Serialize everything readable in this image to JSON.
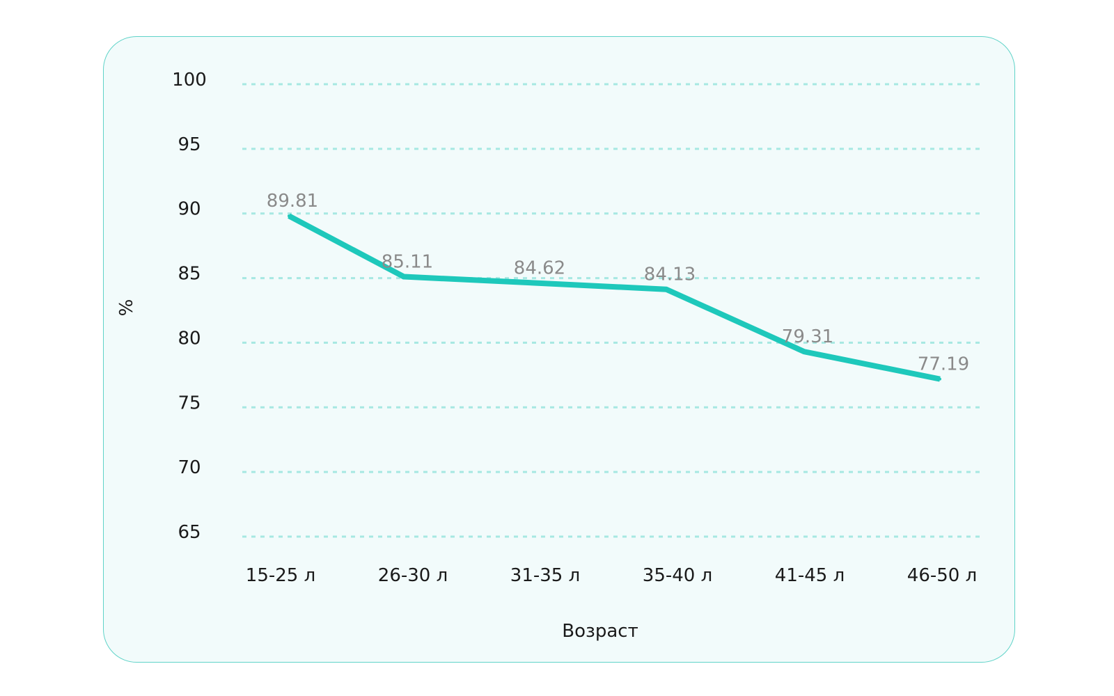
{
  "chart_data": {
    "type": "line",
    "categories": [
      "15-25 л",
      "26-30 л",
      "31-35 л",
      "35-40 л",
      "41-45 л",
      "46-50 л"
    ],
    "series": [
      {
        "values": [
          89.81,
          85.11,
          84.62,
          84.13,
          79.31,
          77.19
        ],
        "color": "#1ec8bb"
      }
    ],
    "data_labels": [
      "89.81",
      "85.11",
      "84.62",
      "84.13",
      "79.31",
      "77.19"
    ],
    "xlabel": "Возраст",
    "ylabel": "%",
    "ylim": [
      65,
      100
    ],
    "yticks": [
      100,
      95,
      90,
      85,
      80,
      75,
      70,
      65
    ],
    "ytick_labels": [
      "100",
      "95",
      "90",
      "85",
      "80",
      "75",
      "70",
      "65"
    ],
    "grid": true,
    "grid_style": "dotted",
    "grid_color": "#a7e8e2",
    "background_color": "#f2fbfb",
    "border_color": "#5fd3c8"
  }
}
